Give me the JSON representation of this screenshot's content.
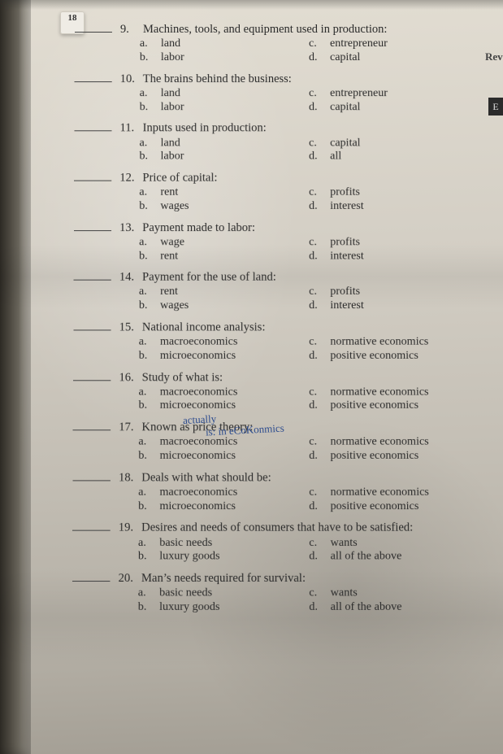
{
  "page_number": "18",
  "right_hint": {
    "rev": "Rev",
    "e": "E"
  },
  "handwriting": {
    "q16_above": "actually",
    "q16_after": "is: in  eCoKonmics"
  },
  "questions": [
    {
      "n": "9.",
      "text": "Machines, tools, and equipment used in production:",
      "a": "land",
      "b": "labor",
      "c": "entrepreneur",
      "d": "capital"
    },
    {
      "n": "10.",
      "text": "The brains behind the business:",
      "a": "land",
      "b": "labor",
      "c": "entrepreneur",
      "d": "capital"
    },
    {
      "n": "11.",
      "text": "Inputs used in production:",
      "a": "land",
      "b": "labor",
      "c": "capital",
      "d": "all"
    },
    {
      "n": "12.",
      "text": "Price of capital:",
      "a": "rent",
      "b": "wages",
      "c": "profits",
      "d": "interest"
    },
    {
      "n": "13.",
      "text": "Payment made to labor:",
      "a": "wage",
      "b": "rent",
      "c": "profits",
      "d": "interest"
    },
    {
      "n": "14.",
      "text": "Payment for the use of land:",
      "a": "rent",
      "b": "wages",
      "c": "profits",
      "d": "interest"
    },
    {
      "n": "15.",
      "text": "National income analysis:",
      "a": "macroeconomics",
      "b": "microeconomics",
      "c": "normative economics",
      "d": "positive economics"
    },
    {
      "n": "16.",
      "text": "Study of what is:",
      "a": "macroeconomics",
      "b": "microeconomics",
      "c": "normative economics",
      "d": "positive economics"
    },
    {
      "n": "17.",
      "text": "Known as price theory:",
      "a": "macroeconomics",
      "b": "microeconomics",
      "c": "normative economics",
      "d": "positive economics"
    },
    {
      "n": "18.",
      "text": "Deals with what should be:",
      "a": "macroeconomics",
      "b": "microeconomics",
      "c": "normative economics",
      "d": "positive economics"
    },
    {
      "n": "19.",
      "text": "Desires and needs of consumers that have to be satisfied:",
      "a": "basic needs",
      "b": "luxury goods",
      "c": "wants",
      "d": "all of the above"
    },
    {
      "n": "20.",
      "text": "Man’s needs required for survival:",
      "a": "basic needs",
      "b": "luxury goods",
      "c": "wants",
      "d": "all of the above"
    }
  ],
  "letters": {
    "a": "a.",
    "b": "b.",
    "c": "c.",
    "d": "d."
  }
}
